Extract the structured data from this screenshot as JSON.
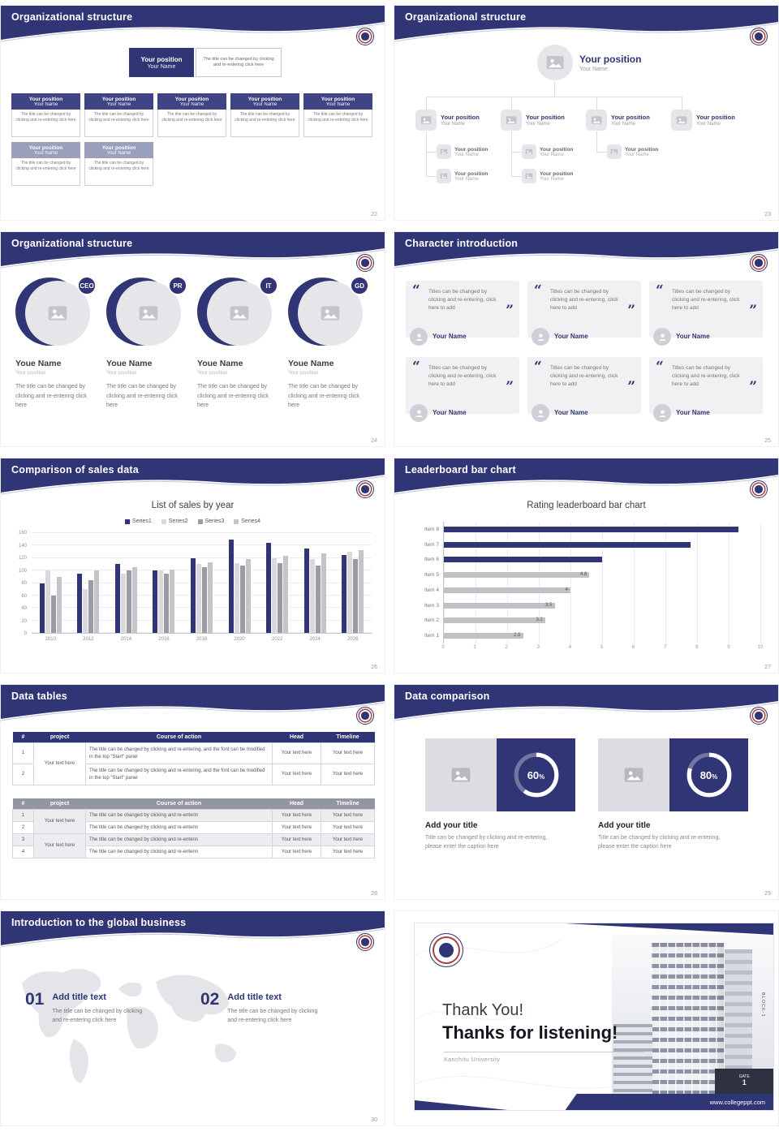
{
  "accent": "#2f3575",
  "slides": {
    "s22": {
      "title": "Organizational structure",
      "page": "22",
      "node_position": "Your position",
      "node_name": "Your Name",
      "node_caption": "The title can be changed by clicking and re-entering click here"
    },
    "s23": {
      "title": "Organizational structure",
      "page": "23",
      "node_position": "Your position",
      "node_name": "Your Name"
    },
    "s24": {
      "title": "Organizational structure",
      "page": "24",
      "roles": [
        "CEO",
        "PR",
        "IT",
        "GD"
      ],
      "person_name": "Youe Name",
      "person_position": "Your position",
      "caption": "The title can be changed by clicking and re-entering click here"
    },
    "s25": {
      "title": "Character introduction",
      "page": "25",
      "open_quote": "“",
      "close_quote": "”",
      "quote_text": "Titles can be changed by clicking and re-entering, click here to add",
      "person_name": "Your Name"
    },
    "s26": {
      "title": "Comparison of sales data",
      "page": "26"
    },
    "s27": {
      "title": "Leaderboard bar chart",
      "page": "27"
    },
    "s28": {
      "title": "Data tables",
      "page": "28",
      "table1": {
        "headers": [
          "#",
          "project",
          "Course of action",
          "Head",
          "Timeline"
        ],
        "project_cell": "Your text here",
        "rows": [
          {
            "num": "1",
            "course": "The title can be changed by clicking and re-entering, and the font can be modified in the top \"Start\" panel",
            "head": "Your text here",
            "timeline": "Your text here"
          },
          {
            "num": "2",
            "course": "The title can be changed by clicking and re-entering, and the font can be modified in the top \"Start\" panel",
            "head": "Your text here",
            "timeline": "Your text here"
          }
        ]
      },
      "table2": {
        "headers": [
          "#",
          "project",
          "Course of action",
          "Head",
          "Timeline"
        ],
        "project_cell_a": "Your text here",
        "project_cell_b": "Your text here",
        "rows": [
          {
            "num": "1",
            "course": "The title can be changed by clicking and re-enterin",
            "head": "Your text here",
            "timeline": "Your text here"
          },
          {
            "num": "2",
            "course": "The title can be changed by clicking and re-enterin",
            "head": "Your text here",
            "timeline": "Your text here"
          },
          {
            "num": "3",
            "course": "The title can be changed by clicking and re-enterin",
            "head": "Your text here",
            "timeline": "Your text here"
          },
          {
            "num": "4",
            "course": "The title can be changed by clicking and re-enterin",
            "head": "Your text here",
            "timeline": "Your text here"
          }
        ]
      }
    },
    "s29": {
      "title": "Data comparison",
      "page": "29",
      "items": [
        {
          "percent": 60,
          "percent_label": "60",
          "percent_suffix": "%",
          "title": "Add your title",
          "caption": "Title can be changed by clicking and re-entering, please enter the caption here"
        },
        {
          "percent": 80,
          "percent_label": "80",
          "percent_suffix": "%",
          "title": "Add your title",
          "caption": "Title can be changed by clicking and re-entering, please enter the caption here"
        }
      ]
    },
    "s30": {
      "title": "Introduction to the global business",
      "page": "30",
      "items": [
        {
          "num": "01",
          "title": "Add title text",
          "caption": "The title can be changed by clicking and re-entering click here"
        },
        {
          "num": "02",
          "title": "Add title text",
          "caption": "The title can be changed by clicking and re-entering click here"
        }
      ]
    },
    "thanks": {
      "heading": "Thank You!",
      "subheading": "Thanks for listening!",
      "caption": "Kanchitu University",
      "website": "www.collegeppt.com",
      "building_label": "BLOCK-1",
      "gate_label": "GATE",
      "gate_number": "1"
    }
  },
  "chart_data": [
    {
      "slide": "26",
      "type": "bar",
      "title": "List of sales by year",
      "categories": [
        "2010",
        "2012",
        "2014",
        "2016",
        "2018",
        "2020",
        "2022",
        "2024",
        "2026"
      ],
      "series": [
        {
          "name": "Series1",
          "color": "#2f3575",
          "values": [
            80,
            95,
            110,
            100,
            120,
            150,
            145,
            135,
            125
          ]
        },
        {
          "name": "Series2",
          "color": "#d9d9dd",
          "values": [
            100,
            70,
            95,
            100,
            110,
            112,
            120,
            118,
            130
          ]
        },
        {
          "name": "Series3",
          "color": "#9b9ba3",
          "values": [
            60,
            85,
            100,
            95,
            105,
            108,
            112,
            108,
            118
          ]
        },
        {
          "name": "Series4",
          "color": "#c4c4cb",
          "values": [
            90,
            100,
            105,
            102,
            113,
            118,
            124,
            128,
            133
          ]
        }
      ],
      "ylim": [
        0,
        160
      ],
      "yticks": [
        0,
        20,
        40,
        60,
        80,
        100,
        120,
        140,
        160
      ],
      "grid": true,
      "legend_position": "top"
    },
    {
      "slide": "27",
      "type": "horizontal-bar",
      "title": "Rating leaderboard bar chart",
      "categories": [
        "Item 8",
        "Item 7",
        "Item 6",
        "Item 5",
        "Item 4",
        "Item 3",
        "Item 2",
        "Item 1"
      ],
      "values": [
        9.3,
        7.8,
        5.0,
        4.6,
        4,
        3.5,
        3.2,
        2.5
      ],
      "colors": [
        "#2f3575",
        "#2f3575",
        "#2f3575",
        "#c0c0c7",
        "#c0c0c7",
        "#c0c0c7",
        "#c0c0c7",
        "#c0c0c7"
      ],
      "value_labels": [
        "",
        "",
        "",
        "4.6",
        "4",
        "3.5",
        "3.2",
        "2.5"
      ],
      "xlim": [
        0,
        10
      ],
      "xticks": [
        0,
        1,
        2,
        3,
        4,
        5,
        6,
        7,
        8,
        9,
        10
      ],
      "grid": true
    }
  ]
}
